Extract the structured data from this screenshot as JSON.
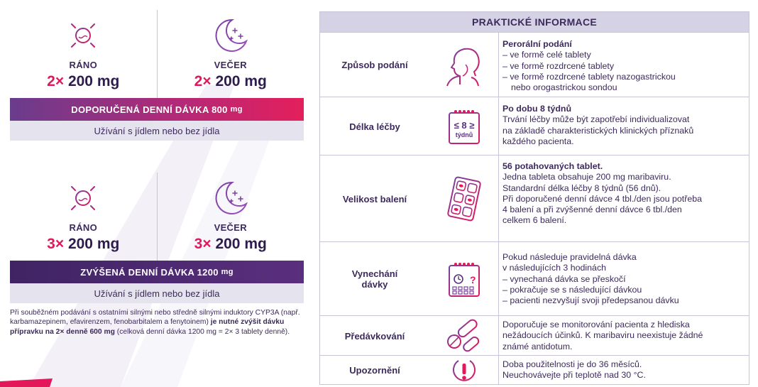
{
  "colors": {
    "accent_pink": "#e2185b",
    "dark_purple": "#3d2a5c",
    "header_bg": "#d6d2e6",
    "food_bg": "#e5e3ee"
  },
  "standard_dose": {
    "morning": {
      "icon": "sun-icon",
      "label": "RÁNO",
      "multiplier": "2×",
      "amount": "200 mg"
    },
    "evening": {
      "icon": "moon-icon",
      "label": "VEČER",
      "multiplier": "2×",
      "amount": "200 mg"
    },
    "daily_label": "DOPORUČENÁ DENNÍ DÁVKA 800",
    "daily_unit": "mg",
    "food_note": "Užívání s jídlem nebo bez jídla"
  },
  "increased_dose": {
    "morning": {
      "icon": "sun-icon",
      "label": "RÁNO",
      "multiplier": "3×",
      "amount": "200 mg"
    },
    "evening": {
      "icon": "moon-icon",
      "label": "VEČER",
      "multiplier": "3×",
      "amount": "200 mg"
    },
    "daily_label": "ZVÝŠENÁ DENNÍ DÁVKA 1200",
    "daily_unit": "mg",
    "food_note": "Užívání s jídlem nebo bez jídla"
  },
  "footnote": {
    "part1": "Při souběžném podávání s ostatními silnými nebo středně silnými induktory CYP3A (např. karbamazepinem, efavirenzem, fenobarbitalem a fenytoinem) ",
    "bold": "je nutné zvýšit dávku přípravku na 2× denně 600 mg",
    "part2": " (celková denní dávka 1200 mg = 2× 3 tablety denně)."
  },
  "info_table": {
    "title": "PRAKTICKÉ INFORMACE",
    "rows": [
      {
        "label": "Způsob podání",
        "icon": "person-head-icon",
        "bold": "Perorální podání",
        "lines": [
          "– ve formě celé tablety",
          "– ve formě rozdrcené tablety",
          "– ve formě rozdrcené tablety nazogastrickou",
          "nebo orogastrickou sondou"
        ]
      },
      {
        "label": "Délka léčby",
        "icon": "calendar-8-weeks-icon",
        "icon_text_top": "≤ 8 ≥",
        "icon_text_bottom": "týdnů",
        "bold": "Po dobu 8 týdnů",
        "lines": [
          "Trvání léčby může být zapotřebí individualizovat",
          "na základě charakteristických klinických příznaků",
          "každého pacienta."
        ]
      },
      {
        "label": "Velikost balení",
        "icon": "blister-pack-icon",
        "bold": "56 potahovaných tablet",
        "bold_suffix": ".",
        "lines": [
          "Jedna tableta obsahuje 200 mg maribaviru.",
          "Standardní délka léčby 8 týdnů (56 dnů).",
          "Při doporučené denní dávce 4 tbl./den jsou potřeba",
          "4 balení a při zvýšenné denní dávce 6 tbl./den",
          "celkem 6 balení."
        ]
      },
      {
        "label_line1": "Vynechání",
        "label_line2": "dávky",
        "icon": "calendar-missed-icon",
        "lines": [
          "Pokud následuje pravidelná dávka",
          "v následujících 3 hodinách",
          "– vynechaná dávka se přeskočí",
          "– pokračuje se s následující dávkou",
          "– pacienti nezvyšují svoji předepsanou dávku"
        ]
      },
      {
        "label": "Předávkování",
        "icon": "pills-icon",
        "lines": [
          "Doporučuje se monitorování pacienta z hlediska",
          "nežádoucích účinků. K maribaviru neexistuje žádné",
          "známé antidotum."
        ]
      },
      {
        "label": "Upozornění",
        "icon": "warning-icon",
        "lines": [
          "Doba použitelnosti je do 36 měsíců.",
          "Neuchovávejte při teplotě nad 30 °C."
        ]
      }
    ]
  }
}
